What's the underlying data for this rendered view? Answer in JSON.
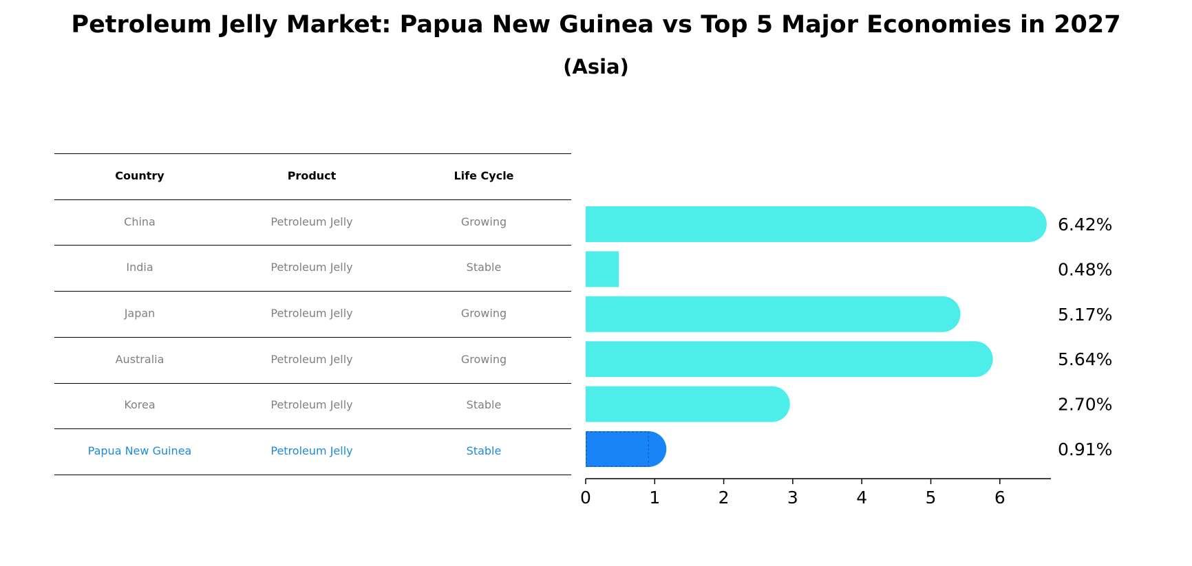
{
  "title": "Petroleum Jelly Market: Papua New Guinea vs Top 5 Major Economies in 2027",
  "subtitle": "(Asia)",
  "table": {
    "headers": [
      "Country",
      "Product",
      "Life Cycle"
    ],
    "rows": [
      {
        "country": "China",
        "product": "Petroleum Jelly",
        "life_cycle": "Growing",
        "highlight": false
      },
      {
        "country": "India",
        "product": "Petroleum Jelly",
        "life_cycle": "Stable",
        "highlight": false
      },
      {
        "country": "Japan",
        "product": "Petroleum Jelly",
        "life_cycle": "Growing",
        "highlight": false
      },
      {
        "country": "Australia",
        "product": "Petroleum Jelly",
        "life_cycle": "Growing",
        "highlight": false
      },
      {
        "country": "Korea",
        "product": "Petroleum Jelly",
        "life_cycle": "Stable",
        "highlight": false
      },
      {
        "country": "Papua New Guinea",
        "product": "Petroleum Jelly",
        "life_cycle": "Stable",
        "highlight": true
      }
    ]
  },
  "chart_data": {
    "type": "bar",
    "orientation": "horizontal",
    "categories": [
      "China",
      "India",
      "Japan",
      "Australia",
      "Korea",
      "Papua New Guinea"
    ],
    "values": [
      6.42,
      0.48,
      5.17,
      5.64,
      2.7,
      0.91
    ],
    "value_labels": [
      "6.42%",
      "0.48%",
      "5.17%",
      "5.64%",
      "2.70%",
      "0.91%"
    ],
    "xlim": [
      0,
      6.74
    ],
    "xticks": [
      0,
      1,
      2,
      3,
      4,
      5,
      6
    ],
    "xtick_labels": [
      "0",
      "1",
      "2",
      "3",
      "4",
      "5",
      "6"
    ],
    "colors": {
      "default": "#4deeea",
      "highlight": "#1884f5"
    }
  }
}
